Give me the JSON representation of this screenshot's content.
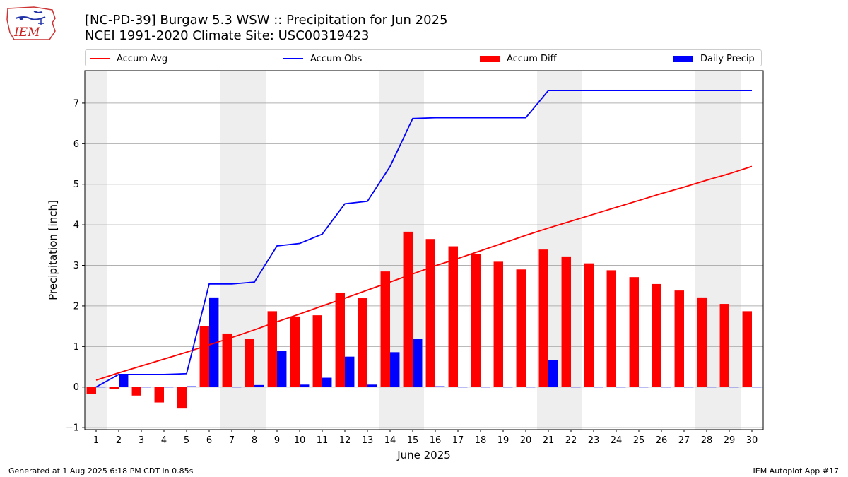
{
  "header": {
    "title_line1": "[NC-PD-39] Burgaw 5.3 WSW :: Precipitation for Jun 2025",
    "title_line2": "NCEI 1991-2020 Climate Site: USC00319423",
    "logo_text": "IEM"
  },
  "legend": {
    "items": [
      {
        "label": "Accum Avg",
        "kind": "line",
        "color": "#ff0000"
      },
      {
        "label": "Accum Obs",
        "kind": "line",
        "color": "#0000ff"
      },
      {
        "label": "Accum Diff",
        "kind": "bar",
        "color": "#ff0000"
      },
      {
        "label": "Daily Precip",
        "kind": "bar",
        "color": "#0000ff"
      }
    ]
  },
  "footer": {
    "generated": "Generated at 1 Aug 2025 6:18 PM CDT in 0.85s",
    "app": "IEM Autoplot App #17"
  },
  "chart_data": {
    "type": "bar",
    "xlabel": "June 2025",
    "ylabel": "Precipitation [inch]",
    "ylim": [
      -1.05,
      7.8
    ],
    "xlim": [
      0.5,
      30.5
    ],
    "yticks": [
      -1,
      0,
      1,
      2,
      3,
      4,
      5,
      6,
      7
    ],
    "grid": "horizontal",
    "legend_position": "top",
    "weekend_shading": [
      [
        0.5,
        1.5
      ],
      [
        6.5,
        8.5
      ],
      [
        13.5,
        15.5
      ],
      [
        20.5,
        22.5
      ],
      [
        27.5,
        29.5
      ]
    ],
    "days": [
      1,
      2,
      3,
      4,
      5,
      6,
      7,
      8,
      9,
      10,
      11,
      12,
      13,
      14,
      15,
      16,
      17,
      18,
      19,
      20,
      21,
      22,
      23,
      24,
      25,
      26,
      27,
      28,
      29,
      30
    ],
    "series": [
      {
        "name": "Accum Avg",
        "kind": "line",
        "color": "#ff0000",
        "values": [
          0.17,
          0.35,
          0.52,
          0.69,
          0.86,
          1.04,
          1.22,
          1.41,
          1.61,
          1.8,
          2.0,
          2.19,
          2.39,
          2.59,
          2.79,
          2.99,
          3.17,
          3.36,
          3.55,
          3.74,
          3.92,
          4.09,
          4.26,
          4.43,
          4.6,
          4.77,
          4.93,
          5.1,
          5.26,
          5.44
        ]
      },
      {
        "name": "Accum Obs",
        "kind": "line",
        "color": "#0000ff",
        "values": [
          0.0,
          0.31,
          0.31,
          0.31,
          0.33,
          2.54,
          2.54,
          2.59,
          3.48,
          3.54,
          3.77,
          4.52,
          4.58,
          5.44,
          6.62,
          6.64,
          6.64,
          6.64,
          6.64,
          6.64,
          7.31,
          7.31,
          7.31,
          7.31,
          7.31,
          7.31,
          7.31,
          7.31,
          7.31,
          7.31
        ]
      },
      {
        "name": "Accum Diff",
        "kind": "bar",
        "color": "#ff0000",
        "values": [
          -0.17,
          -0.04,
          -0.21,
          -0.38,
          -0.53,
          1.5,
          1.32,
          1.18,
          1.87,
          1.74,
          1.77,
          2.33,
          2.19,
          2.85,
          3.83,
          3.65,
          3.47,
          3.28,
          3.09,
          2.9,
          3.39,
          3.22,
          3.05,
          2.88,
          2.71,
          2.54,
          2.38,
          2.21,
          2.05,
          1.87
        ]
      },
      {
        "name": "Daily Precip",
        "kind": "bar",
        "color": "#0000ff",
        "values": [
          0.0,
          0.31,
          0.0,
          0.0,
          0.02,
          2.21,
          0.0,
          0.05,
          0.89,
          0.06,
          0.23,
          0.75,
          0.06,
          0.86,
          1.18,
          0.02,
          0.0,
          0.0,
          0.0,
          0.0,
          0.67,
          0.0,
          0.0,
          0.0,
          0.0,
          0.0,
          0.0,
          0.0,
          0.0,
          0.0
        ]
      }
    ]
  }
}
